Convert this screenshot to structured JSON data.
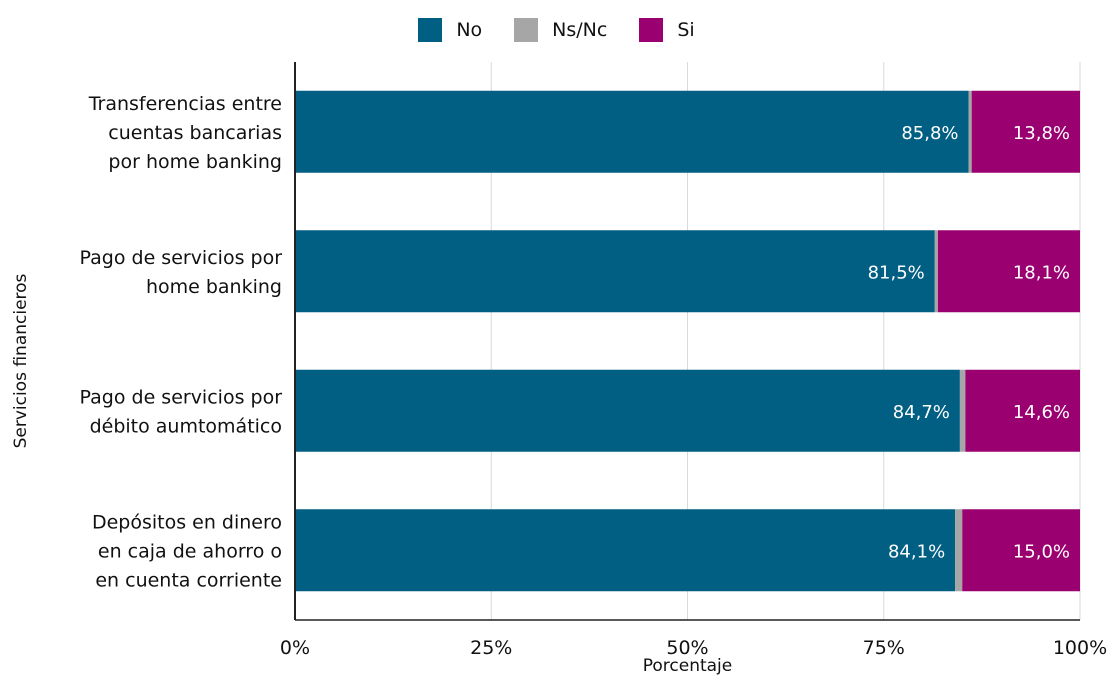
{
  "chart_data": {
    "type": "bar",
    "orientation": "horizontal",
    "stacked": true,
    "categories": [
      [
        "Transferencias entre",
        "cuentas bancarias",
        "por home banking"
      ],
      [
        "Pago de servicios por",
        "home banking"
      ],
      [
        "Pago de servicios por",
        "débito aumtomático"
      ],
      [
        "Depósitos en dinero",
        "en caja de ahorro o",
        "en cuenta corriente"
      ]
    ],
    "series": [
      {
        "name": "No",
        "color": "#005f83",
        "values": [
          85.8,
          81.5,
          84.7,
          84.1
        ],
        "labels": [
          "85,8%",
          "81,5%",
          "84,7%",
          "84,1%"
        ]
      },
      {
        "name": "Ns/Nc",
        "color": "#a6a6a6",
        "values": [
          0.4,
          0.4,
          0.7,
          0.9
        ],
        "labels": [
          "",
          "",
          "",
          ""
        ]
      },
      {
        "name": "Si",
        "color": "#9b0070",
        "values": [
          13.8,
          18.1,
          14.6,
          15.0
        ],
        "labels": [
          "13,8%",
          "18,1%",
          "14,6%",
          "15,0%"
        ]
      }
    ],
    "xlabel": "Porcentaje",
    "ylabel": "Servicios financieros",
    "xlim": [
      0,
      100
    ],
    "xticks": [
      "0%",
      "25%",
      "50%",
      "75%",
      "100%"
    ],
    "grid": true,
    "legend_position": "top-center"
  }
}
